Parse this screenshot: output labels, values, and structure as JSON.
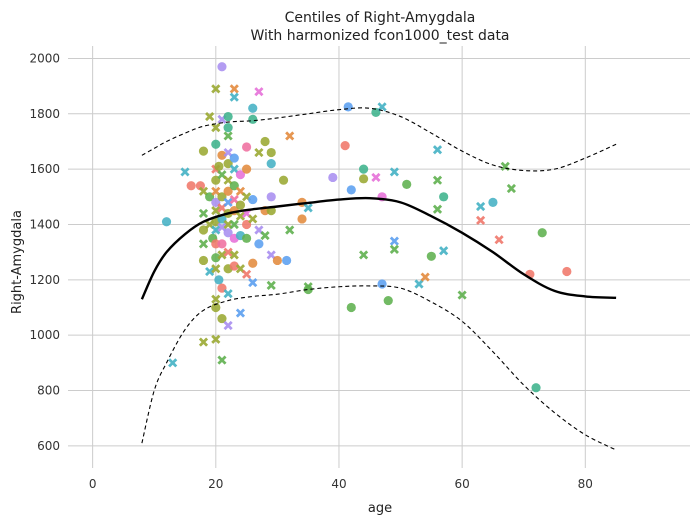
{
  "chart_data": {
    "type": "scatter",
    "title": "Centiles of Right-Amygdala",
    "subtitle": "With harmonized fcon1000_test data",
    "xlabel": "age",
    "ylabel": "Right-Amygdala",
    "xlim": [
      -4,
      97
    ],
    "ylim": [
      520,
      2045
    ],
    "xticks": [
      0,
      20,
      40,
      60,
      80
    ],
    "yticks": [
      600,
      800,
      1000,
      1200,
      1400,
      1600,
      1800,
      2000
    ],
    "grid": true,
    "legend": "none",
    "colors": {
      "median": "#000000",
      "bounds": "#000000",
      "grid": "#cccccc",
      "palette": [
        "#f0776a",
        "#e38b3e",
        "#9aa832",
        "#5fb04f",
        "#3db38c",
        "#44b1c4",
        "#5b9ff0",
        "#a98ef0",
        "#e670d8",
        "#ef6f9f"
      ]
    },
    "centiles": {
      "x": [
        8,
        10,
        12,
        15,
        18,
        22,
        26,
        30,
        35,
        40,
        45,
        50,
        55,
        60,
        65,
        70,
        75,
        80,
        85
      ],
      "median": [
        1130,
        1230,
        1300,
        1365,
        1410,
        1440,
        1455,
        1465,
        1478,
        1490,
        1495,
        1480,
        1430,
        1370,
        1300,
        1220,
        1160,
        1140,
        1135
      ],
      "upper": [
        1650,
        1675,
        1700,
        1730,
        1755,
        1770,
        1775,
        1785,
        1800,
        1815,
        1820,
        1790,
        1730,
        1665,
        1615,
        1595,
        1600,
        1640,
        1690
      ],
      "lower": [
        610,
        800,
        900,
        1020,
        1090,
        1125,
        1140,
        1148,
        1165,
        1175,
        1178,
        1170,
        1120,
        1050,
        940,
        820,
        720,
        640,
        585
      ]
    },
    "points": [
      {
        "x": 12,
        "y": 1410,
        "m": "o",
        "c": 5
      },
      {
        "x": 13,
        "y": 900,
        "m": "x",
        "c": 5
      },
      {
        "x": 15,
        "y": 1590,
        "m": "x",
        "c": 5
      },
      {
        "x": 16,
        "y": 1540,
        "m": "o",
        "c": 0
      },
      {
        "x": 17.5,
        "y": 1540,
        "m": "o",
        "c": 0
      },
      {
        "x": 18,
        "y": 1665,
        "m": "o",
        "c": 2
      },
      {
        "x": 18,
        "y": 1520,
        "m": "x",
        "c": 2
      },
      {
        "x": 18,
        "y": 1440,
        "m": "x",
        "c": 3
      },
      {
        "x": 18,
        "y": 1380,
        "m": "o",
        "c": 2
      },
      {
        "x": 18,
        "y": 1330,
        "m": "x",
        "c": 3
      },
      {
        "x": 18,
        "y": 1270,
        "m": "o",
        "c": 2
      },
      {
        "x": 18,
        "y": 975,
        "m": "x",
        "c": 2
      },
      {
        "x": 19,
        "y": 1790,
        "m": "x",
        "c": 2
      },
      {
        "x": 19,
        "y": 1500,
        "m": "o",
        "c": 3
      },
      {
        "x": 19,
        "y": 1400,
        "m": "x",
        "c": 2
      },
      {
        "x": 19,
        "y": 1230,
        "m": "x",
        "c": 5
      },
      {
        "x": 19.5,
        "y": 1350,
        "m": "o",
        "c": 3
      },
      {
        "x": 20,
        "y": 1890,
        "m": "x",
        "c": 2
      },
      {
        "x": 20,
        "y": 1750,
        "m": "x",
        "c": 2
      },
      {
        "x": 20,
        "y": 1690,
        "m": "o",
        "c": 4
      },
      {
        "x": 20,
        "y": 1600,
        "m": "x",
        "c": 0
      },
      {
        "x": 20,
        "y": 1560,
        "m": "o",
        "c": 2
      },
      {
        "x": 20,
        "y": 1520,
        "m": "x",
        "c": 1
      },
      {
        "x": 20,
        "y": 1480,
        "m": "o",
        "c": 7
      },
      {
        "x": 20,
        "y": 1450,
        "m": "x",
        "c": 2
      },
      {
        "x": 20,
        "y": 1410,
        "m": "o",
        "c": 2
      },
      {
        "x": 20,
        "y": 1380,
        "m": "x",
        "c": 5
      },
      {
        "x": 20,
        "y": 1330,
        "m": "o",
        "c": 0
      },
      {
        "x": 20,
        "y": 1280,
        "m": "o",
        "c": 3
      },
      {
        "x": 20,
        "y": 1240,
        "m": "x",
        "c": 2
      },
      {
        "x": 20,
        "y": 1130,
        "m": "x",
        "c": 2
      },
      {
        "x": 20,
        "y": 1100,
        "m": "o",
        "c": 2
      },
      {
        "x": 20,
        "y": 985,
        "m": "x",
        "c": 2
      },
      {
        "x": 20.5,
        "y": 1610,
        "m": "o",
        "c": 2
      },
      {
        "x": 20.5,
        "y": 1200,
        "m": "o",
        "c": 5
      },
      {
        "x": 21,
        "y": 1970,
        "m": "o",
        "c": 7
      },
      {
        "x": 21,
        "y": 1780,
        "m": "x",
        "c": 7
      },
      {
        "x": 21,
        "y": 1650,
        "m": "o",
        "c": 1
      },
      {
        "x": 21,
        "y": 1580,
        "m": "x",
        "c": 3
      },
      {
        "x": 21,
        "y": 1500,
        "m": "o",
        "c": 2
      },
      {
        "x": 21,
        "y": 1460,
        "m": "x",
        "c": 0
      },
      {
        "x": 21,
        "y": 1420,
        "m": "o",
        "c": 5
      },
      {
        "x": 21,
        "y": 1390,
        "m": "x",
        "c": 7
      },
      {
        "x": 21,
        "y": 1330,
        "m": "o",
        "c": 9
      },
      {
        "x": 21,
        "y": 1290,
        "m": "x",
        "c": 2
      },
      {
        "x": 21,
        "y": 1170,
        "m": "o",
        "c": 0
      },
      {
        "x": 21,
        "y": 1060,
        "m": "o",
        "c": 2
      },
      {
        "x": 21,
        "y": 910,
        "m": "x",
        "c": 3
      },
      {
        "x": 22,
        "y": 1790,
        "m": "o",
        "c": 4
      },
      {
        "x": 22,
        "y": 1750,
        "m": "o",
        "c": 4
      },
      {
        "x": 22,
        "y": 1720,
        "m": "x",
        "c": 3
      },
      {
        "x": 22,
        "y": 1660,
        "m": "x",
        "c": 7
      },
      {
        "x": 22,
        "y": 1620,
        "m": "o",
        "c": 2
      },
      {
        "x": 22,
        "y": 1560,
        "m": "x",
        "c": 2
      },
      {
        "x": 22,
        "y": 1520,
        "m": "o",
        "c": 1
      },
      {
        "x": 22,
        "y": 1480,
        "m": "x",
        "c": 6
      },
      {
        "x": 22,
        "y": 1440,
        "m": "o",
        "c": 2
      },
      {
        "x": 22,
        "y": 1400,
        "m": "x",
        "c": 2
      },
      {
        "x": 22,
        "y": 1370,
        "m": "o",
        "c": 7
      },
      {
        "x": 22,
        "y": 1300,
        "m": "x",
        "c": 0
      },
      {
        "x": 22,
        "y": 1240,
        "m": "o",
        "c": 2
      },
      {
        "x": 22,
        "y": 1150,
        "m": "x",
        "c": 5
      },
      {
        "x": 22,
        "y": 1035,
        "m": "x",
        "c": 7
      },
      {
        "x": 23,
        "y": 1890,
        "m": "x",
        "c": 1
      },
      {
        "x": 23,
        "y": 1860,
        "m": "x",
        "c": 5
      },
      {
        "x": 23,
        "y": 1640,
        "m": "o",
        "c": 6
      },
      {
        "x": 23,
        "y": 1600,
        "m": "x",
        "c": 5
      },
      {
        "x": 23,
        "y": 1540,
        "m": "o",
        "c": 3
      },
      {
        "x": 23,
        "y": 1490,
        "m": "x",
        "c": 9
      },
      {
        "x": 23,
        "y": 1450,
        "m": "o",
        "c": 1
      },
      {
        "x": 23,
        "y": 1400,
        "m": "x",
        "c": 3
      },
      {
        "x": 23,
        "y": 1350,
        "m": "o",
        "c": 8
      },
      {
        "x": 23,
        "y": 1290,
        "m": "x",
        "c": 2
      },
      {
        "x": 23,
        "y": 1250,
        "m": "o",
        "c": 0
      },
      {
        "x": 24,
        "y": 1580,
        "m": "o",
        "c": 8
      },
      {
        "x": 24,
        "y": 1520,
        "m": "x",
        "c": 1
      },
      {
        "x": 24,
        "y": 1470,
        "m": "o",
        "c": 2
      },
      {
        "x": 24,
        "y": 1430,
        "m": "x",
        "c": 2
      },
      {
        "x": 24,
        "y": 1360,
        "m": "o",
        "c": 5
      },
      {
        "x": 24,
        "y": 1240,
        "m": "x",
        "c": 2
      },
      {
        "x": 24,
        "y": 1080,
        "m": "x",
        "c": 6
      },
      {
        "x": 25,
        "y": 1680,
        "m": "o",
        "c": 9
      },
      {
        "x": 25,
        "y": 1600,
        "m": "o",
        "c": 1
      },
      {
        "x": 25,
        "y": 1500,
        "m": "x",
        "c": 2
      },
      {
        "x": 25,
        "y": 1440,
        "m": "x",
        "c": 8
      },
      {
        "x": 25,
        "y": 1400,
        "m": "o",
        "c": 0
      },
      {
        "x": 25,
        "y": 1350,
        "m": "o",
        "c": 3
      },
      {
        "x": 25,
        "y": 1220,
        "m": "x",
        "c": 0
      },
      {
        "x": 26,
        "y": 1820,
        "m": "o",
        "c": 5
      },
      {
        "x": 26,
        "y": 1780,
        "m": "o",
        "c": 4
      },
      {
        "x": 26,
        "y": 1490,
        "m": "o",
        "c": 6
      },
      {
        "x": 26,
        "y": 1420,
        "m": "x",
        "c": 2
      },
      {
        "x": 26,
        "y": 1260,
        "m": "o",
        "c": 1
      },
      {
        "x": 26,
        "y": 1190,
        "m": "x",
        "c": 6
      },
      {
        "x": 27,
        "y": 1880,
        "m": "x",
        "c": 8
      },
      {
        "x": 27,
        "y": 1660,
        "m": "x",
        "c": 2
      },
      {
        "x": 27,
        "y": 1380,
        "m": "x",
        "c": 7
      },
      {
        "x": 27,
        "y": 1330,
        "m": "o",
        "c": 6
      },
      {
        "x": 28,
        "y": 1700,
        "m": "o",
        "c": 2
      },
      {
        "x": 28,
        "y": 1450,
        "m": "o",
        "c": 1
      },
      {
        "x": 28,
        "y": 1360,
        "m": "x",
        "c": 3
      },
      {
        "x": 29,
        "y": 1660,
        "m": "o",
        "c": 2
      },
      {
        "x": 29,
        "y": 1620,
        "m": "o",
        "c": 5
      },
      {
        "x": 29,
        "y": 1500,
        "m": "o",
        "c": 7
      },
      {
        "x": 29,
        "y": 1450,
        "m": "o",
        "c": 2
      },
      {
        "x": 29,
        "y": 1290,
        "m": "x",
        "c": 7
      },
      {
        "x": 29,
        "y": 1180,
        "m": "x",
        "c": 3
      },
      {
        "x": 30,
        "y": 1270,
        "m": "o",
        "c": 1
      },
      {
        "x": 31,
        "y": 1560,
        "m": "o",
        "c": 2
      },
      {
        "x": 31.5,
        "y": 1270,
        "m": "o",
        "c": 6
      },
      {
        "x": 32,
        "y": 1720,
        "m": "x",
        "c": 1
      },
      {
        "x": 32,
        "y": 1380,
        "m": "x",
        "c": 3
      },
      {
        "x": 34,
        "y": 1480,
        "m": "o",
        "c": 1
      },
      {
        "x": 34,
        "y": 1420,
        "m": "o",
        "c": 1
      },
      {
        "x": 35,
        "y": 1460,
        "m": "x",
        "c": 5
      },
      {
        "x": 35,
        "y": 1175,
        "m": "x",
        "c": 3
      },
      {
        "x": 35,
        "y": 1165,
        "m": "o",
        "c": 3
      },
      {
        "x": 39,
        "y": 1570,
        "m": "o",
        "c": 7
      },
      {
        "x": 41,
        "y": 1685,
        "m": "o",
        "c": 0
      },
      {
        "x": 41.5,
        "y": 1825,
        "m": "o",
        "c": 6
      },
      {
        "x": 42,
        "y": 1525,
        "m": "o",
        "c": 6
      },
      {
        "x": 42,
        "y": 1100,
        "m": "o",
        "c": 3
      },
      {
        "x": 44,
        "y": 1600,
        "m": "o",
        "c": 4
      },
      {
        "x": 44,
        "y": 1565,
        "m": "o",
        "c": 2
      },
      {
        "x": 44,
        "y": 1290,
        "m": "x",
        "c": 3
      },
      {
        "x": 46,
        "y": 1805,
        "m": "o",
        "c": 4
      },
      {
        "x": 46,
        "y": 1570,
        "m": "x",
        "c": 8
      },
      {
        "x": 47,
        "y": 1825,
        "m": "x",
        "c": 5
      },
      {
        "x": 47,
        "y": 1500,
        "m": "o",
        "c": 8
      },
      {
        "x": 47,
        "y": 1185,
        "m": "o",
        "c": 6
      },
      {
        "x": 48,
        "y": 1125,
        "m": "o",
        "c": 3
      },
      {
        "x": 49,
        "y": 1590,
        "m": "x",
        "c": 5
      },
      {
        "x": 49,
        "y": 1340,
        "m": "x",
        "c": 6
      },
      {
        "x": 49,
        "y": 1310,
        "m": "x",
        "c": 3
      },
      {
        "x": 51,
        "y": 1545,
        "m": "o",
        "c": 3
      },
      {
        "x": 53,
        "y": 1185,
        "m": "x",
        "c": 5
      },
      {
        "x": 54,
        "y": 1210,
        "m": "x",
        "c": 1
      },
      {
        "x": 55,
        "y": 1285,
        "m": "o",
        "c": 3
      },
      {
        "x": 56,
        "y": 1670,
        "m": "x",
        "c": 5
      },
      {
        "x": 56,
        "y": 1560,
        "m": "x",
        "c": 3
      },
      {
        "x": 56,
        "y": 1455,
        "m": "x",
        "c": 3
      },
      {
        "x": 57,
        "y": 1500,
        "m": "o",
        "c": 4
      },
      {
        "x": 57,
        "y": 1305,
        "m": "x",
        "c": 5
      },
      {
        "x": 60,
        "y": 1145,
        "m": "x",
        "c": 3
      },
      {
        "x": 63,
        "y": 1465,
        "m": "x",
        "c": 5
      },
      {
        "x": 63,
        "y": 1415,
        "m": "x",
        "c": 0
      },
      {
        "x": 65,
        "y": 1480,
        "m": "o",
        "c": 5
      },
      {
        "x": 66,
        "y": 1345,
        "m": "x",
        "c": 0
      },
      {
        "x": 67,
        "y": 1610,
        "m": "x",
        "c": 3
      },
      {
        "x": 68,
        "y": 1530,
        "m": "x",
        "c": 3
      },
      {
        "x": 71,
        "y": 1220,
        "m": "o",
        "c": 0
      },
      {
        "x": 72,
        "y": 810,
        "m": "o",
        "c": 4
      },
      {
        "x": 73,
        "y": 1370,
        "m": "o",
        "c": 3
      },
      {
        "x": 77,
        "y": 1230,
        "m": "o",
        "c": 0
      }
    ]
  }
}
